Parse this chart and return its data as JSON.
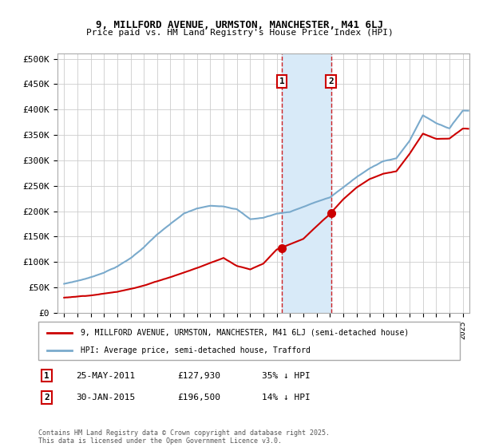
{
  "title": "9, MILLFORD AVENUE, URMSTON, MANCHESTER, M41 6LJ",
  "subtitle": "Price paid vs. HM Land Registry's House Price Index (HPI)",
  "ylabel_ticks": [
    "£0",
    "£50K",
    "£100K",
    "£150K",
    "£200K",
    "£250K",
    "£300K",
    "£350K",
    "£400K",
    "£450K",
    "£500K"
  ],
  "ytick_vals": [
    0,
    50000,
    100000,
    150000,
    200000,
    250000,
    300000,
    350000,
    400000,
    450000,
    500000
  ],
  "ylim": [
    0,
    510000
  ],
  "xlim_start": 1994.5,
  "xlim_end": 2025.5,
  "sale1_x": 2011.4,
  "sale1_y": 127930,
  "sale2_x": 2015.08,
  "sale2_y": 196500,
  "sale1_label": "1",
  "sale2_label": "2",
  "annotation_box_color": "#cc0000",
  "shaded_region_color": "#d8eaf8",
  "dashed_line_color": "#cc0000",
  "hpi_line_color": "#7aaacc",
  "price_line_color": "#cc0000",
  "legend_label_price": "9, MILLFORD AVENUE, URMSTON, MANCHESTER, M41 6LJ (semi-detached house)",
  "legend_label_hpi": "HPI: Average price, semi-detached house, Trafford",
  "note1_label": "1",
  "note1_date": "25-MAY-2011",
  "note1_price": "£127,930",
  "note1_pct": "35% ↓ HPI",
  "note2_label": "2",
  "note2_date": "30-JAN-2015",
  "note2_price": "£196,500",
  "note2_pct": "14% ↓ HPI",
  "footer": "Contains HM Land Registry data © Crown copyright and database right 2025.\nThis data is licensed under the Open Government Licence v3.0.",
  "background_color": "#ffffff",
  "grid_color": "#cccccc",
  "hpi_knots_x": [
    1995,
    1996,
    1997,
    1998,
    1999,
    2000,
    2001,
    2002,
    2003,
    2004,
    2005,
    2006,
    2007,
    2008,
    2009,
    2010,
    2011,
    2012,
    2013,
    2014,
    2015,
    2016,
    2017,
    2018,
    2019,
    2020,
    2021,
    2022,
    2023,
    2024,
    2025
  ],
  "hpi_knots_y": [
    57000,
    63000,
    70000,
    80000,
    92000,
    108000,
    130000,
    155000,
    175000,
    195000,
    205000,
    210000,
    210000,
    205000,
    185000,
    188000,
    196000,
    200000,
    210000,
    220000,
    228000,
    248000,
    268000,
    285000,
    300000,
    305000,
    340000,
    390000,
    375000,
    365000,
    400000
  ],
  "price_knots_x": [
    1995,
    1997,
    1999,
    2001,
    2003,
    2005,
    2007,
    2008,
    2009,
    2010,
    2011,
    2013,
    2015,
    2016,
    2017,
    2018,
    2019,
    2020,
    2021,
    2022,
    2023,
    2024,
    2025
  ],
  "price_knots_y": [
    30000,
    35000,
    42000,
    55000,
    72000,
    90000,
    110000,
    95000,
    88000,
    100000,
    127930,
    148000,
    196500,
    225000,
    248000,
    265000,
    275000,
    280000,
    315000,
    355000,
    345000,
    345000,
    365000
  ]
}
